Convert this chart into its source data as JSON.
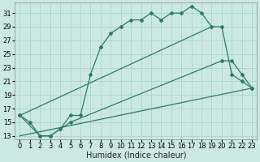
{
  "bg_color": "#cce8e4",
  "grid_color": "#aad4ce",
  "line_color": "#2d7a6a",
  "xlabel": "Humidex (Indice chaleur)",
  "ylabel_ticks": [
    13,
    15,
    17,
    19,
    21,
    23,
    25,
    27,
    29,
    31
  ],
  "xlim": [
    -0.5,
    23.5
  ],
  "ylim": [
    12.5,
    32.5
  ],
  "xticks": [
    0,
    1,
    2,
    3,
    4,
    5,
    6,
    7,
    8,
    9,
    10,
    11,
    12,
    13,
    14,
    15,
    16,
    17,
    18,
    19,
    20,
    21,
    22,
    23
  ],
  "series1_x": [
    0,
    1,
    2,
    3,
    4,
    5,
    6,
    7,
    8,
    9,
    10,
    11,
    12,
    13,
    14,
    15,
    16,
    17,
    18,
    19,
    20,
    21,
    22,
    23
  ],
  "series1_y": [
    16,
    15,
    13,
    13,
    14,
    16,
    16,
    22,
    26,
    28,
    29,
    30,
    30,
    31,
    30,
    31,
    31,
    32,
    31,
    29,
    29,
    22,
    21,
    20
  ],
  "series2_x": [
    0,
    2,
    3,
    4,
    5,
    20,
    21,
    22,
    23
  ],
  "series2_y": [
    16,
    13,
    13,
    14,
    15,
    24,
    24,
    22,
    20
  ],
  "series3_x": [
    0,
    19
  ],
  "series3_y": [
    16,
    29
  ],
  "series4_x": [
    0,
    23
  ],
  "series4_y": [
    13,
    20
  ],
  "xlabel_fontsize": 7,
  "tick_fontsize": 6
}
